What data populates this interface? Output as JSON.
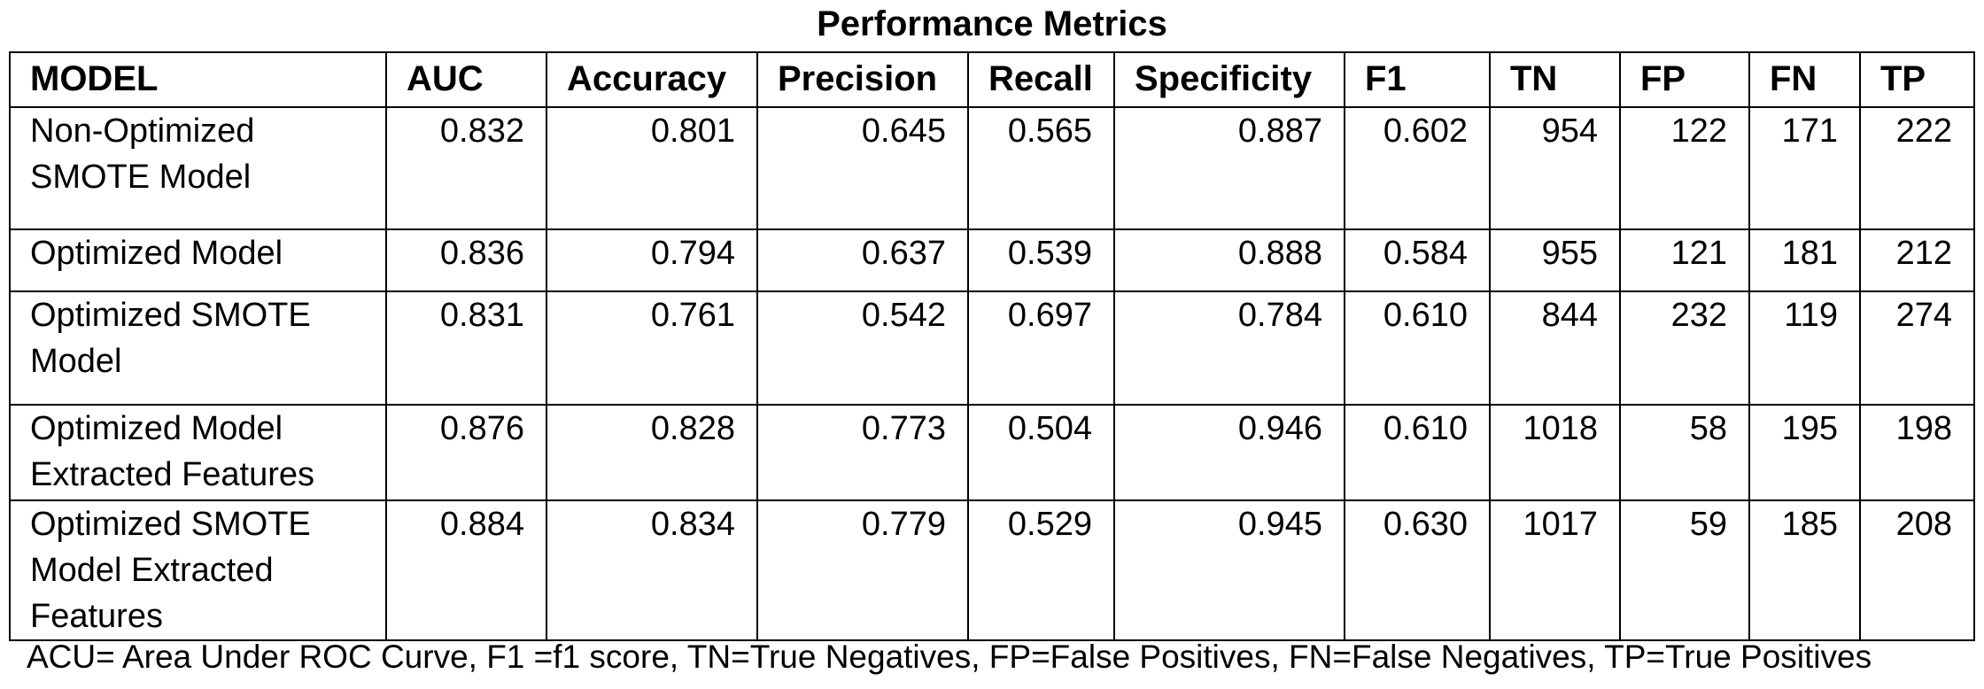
{
  "title": "Performance Metrics",
  "table": {
    "headers": [
      "MODEL",
      "AUC",
      "Accuracy",
      "Precision",
      "Recall",
      "Specificity",
      "F1",
      "TN",
      "FP",
      "FN",
      "TP"
    ],
    "rows": [
      {
        "model": "Non-Optimized SMOTE Model",
        "values": [
          "0.832",
          "0.801",
          "0.645",
          "0.565",
          "0.887",
          "0.602",
          "954",
          "122",
          "171",
          "222"
        ]
      },
      {
        "model": "Optimized Model",
        "values": [
          "0.836",
          "0.794",
          "0.637",
          "0.539",
          "0.888",
          "0.584",
          "955",
          "121",
          "181",
          "212"
        ]
      },
      {
        "model": "Optimized SMOTE Model",
        "values": [
          "0.831",
          "0.761",
          "0.542",
          "0.697",
          "0.784",
          "0.610",
          "844",
          "232",
          "119",
          "274"
        ]
      },
      {
        "model": "Optimized Model Extracted Features",
        "values": [
          "0.876",
          "0.828",
          "0.773",
          "0.504",
          "0.946",
          "0.610",
          "1018",
          "58",
          "195",
          "198"
        ]
      },
      {
        "model": "Optimized SMOTE Model Extracted Features",
        "values": [
          "0.884",
          "0.834",
          "0.779",
          "0.529",
          "0.945",
          "0.630",
          "1017",
          "59",
          "185",
          "208"
        ]
      }
    ]
  },
  "footnote": "ACU= Area Under ROC Curve, F1 =f1 score, TN=True Negatives, FP=False Positives, FN=False Negatives, TP=True Positives"
}
